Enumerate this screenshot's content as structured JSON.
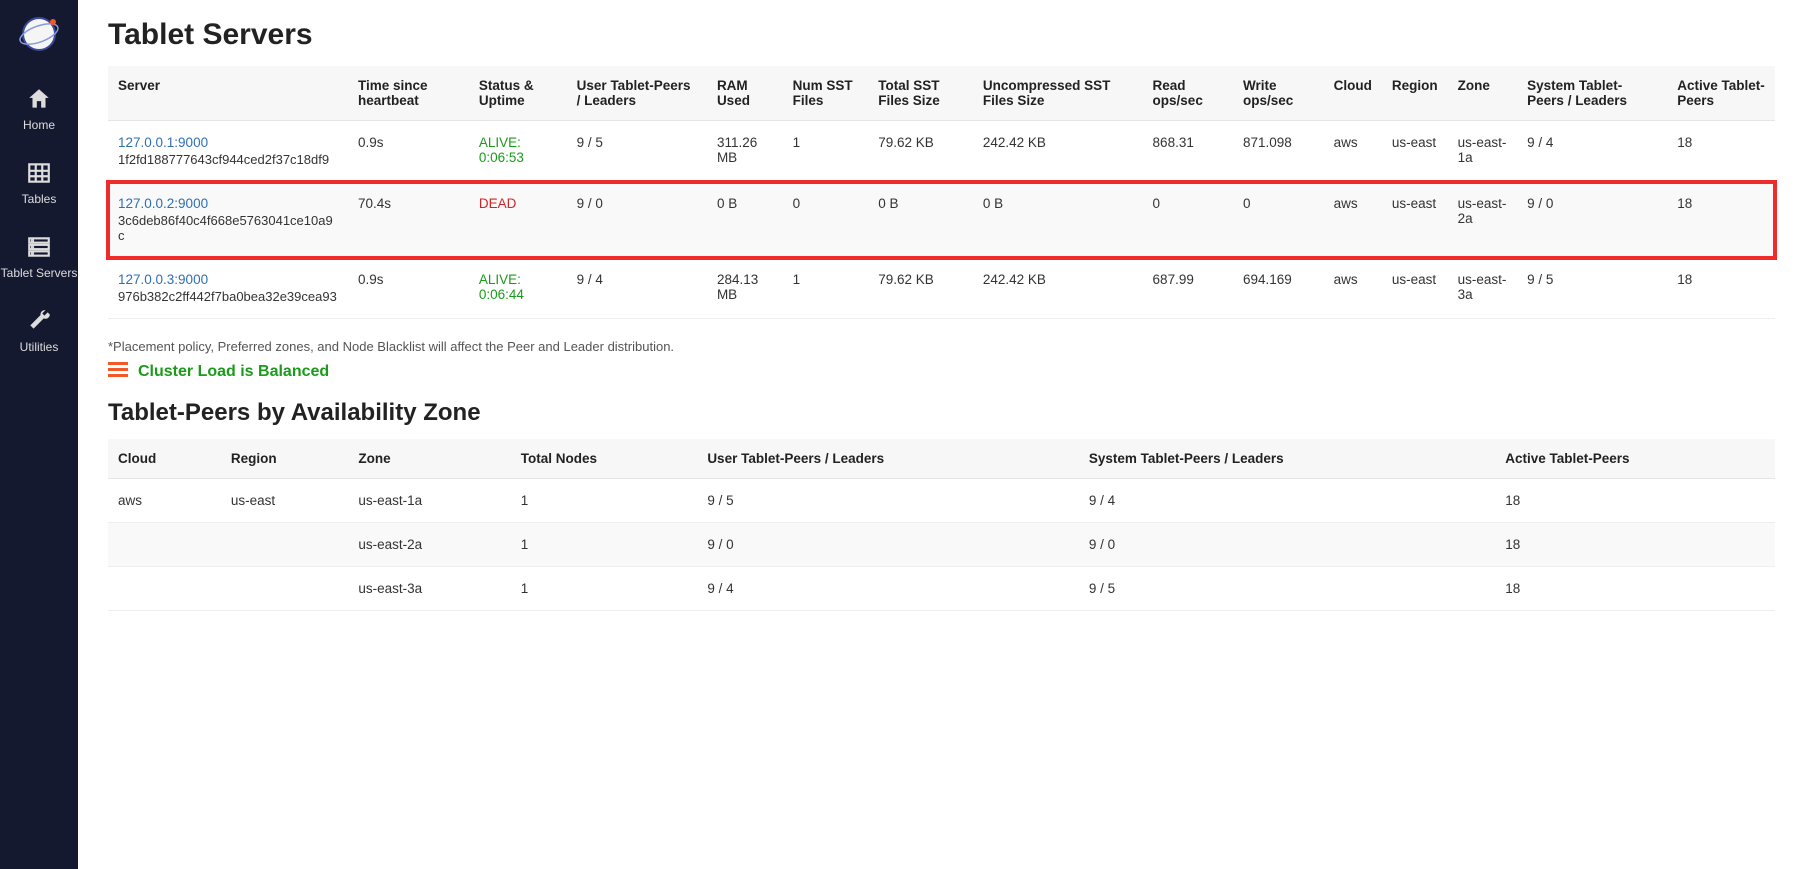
{
  "sidebar": {
    "items": [
      {
        "label": "Home"
      },
      {
        "label": "Tables"
      },
      {
        "label": "Tablet Servers"
      },
      {
        "label": "Utilities"
      }
    ]
  },
  "page": {
    "title": "Tablet Servers",
    "footnote": "*Placement policy, Preferred zones, and Node Blacklist will affect the Peer and Leader distribution.",
    "balanced_text": "Cluster Load is Balanced",
    "az_title": "Tablet-Peers by Availability Zone"
  },
  "servers_table": {
    "headers": {
      "server": "Server",
      "time": "Time since heartbeat",
      "status": "Status & Uptime",
      "user_peers": "User Tablet-Peers / Leaders",
      "ram": "RAM Used",
      "num_sst": "Num SST Files",
      "total_sst": "Total SST Files Size",
      "uncomp": "Uncompressed SST Files Size",
      "read_ops": "Read ops/sec",
      "write_ops": "Write ops/sec",
      "cloud": "Cloud",
      "region": "Region",
      "zone": "Zone",
      "sys_peers": "System Tablet-Peers / Leaders",
      "active": "Active Tablet-Peers"
    },
    "rows": [
      {
        "server": "127.0.0.1:9000",
        "uuid": "1f2fd188777643cf944ced2f37c18df9",
        "time": "0.9s",
        "status": "ALIVE: 0:06:53",
        "status_class": "alive",
        "user_peers": "9 / 5",
        "ram": "311.26 MB",
        "num_sst": "1",
        "total_sst": "79.62 KB",
        "uncomp": "242.42 KB",
        "read_ops": "868.31",
        "write_ops": "871.098",
        "cloud": "aws",
        "region": "us-east",
        "zone": "us-east-1a",
        "sys_peers": "9 / 4",
        "active": "18",
        "highlight": false,
        "striped": false
      },
      {
        "server": "127.0.0.2:9000",
        "uuid": "3c6deb86f40c4f668e5763041ce10a9c",
        "time": "70.4s",
        "status": "DEAD",
        "status_class": "dead",
        "user_peers": "9 / 0",
        "ram": "0 B",
        "num_sst": "0",
        "total_sst": "0 B",
        "uncomp": "0 B",
        "read_ops": "0",
        "write_ops": "0",
        "cloud": "aws",
        "region": "us-east",
        "zone": "us-east-2a",
        "sys_peers": "9 / 0",
        "active": "18",
        "highlight": true,
        "striped": true
      },
      {
        "server": "127.0.0.3:9000",
        "uuid": "976b382c2ff442f7ba0bea32e39cea93",
        "time": "0.9s",
        "status": "ALIVE: 0:06:44",
        "status_class": "alive",
        "user_peers": "9 / 4",
        "ram": "284.13 MB",
        "num_sst": "1",
        "total_sst": "79.62 KB",
        "uncomp": "242.42 KB",
        "read_ops": "687.99",
        "write_ops": "694.169",
        "cloud": "aws",
        "region": "us-east",
        "zone": "us-east-3a",
        "sys_peers": "9 / 5",
        "active": "18",
        "highlight": false,
        "striped": false
      }
    ]
  },
  "az_table": {
    "headers": {
      "cloud": "Cloud",
      "region": "Region",
      "zone": "Zone",
      "total_nodes": "Total Nodes",
      "user_peers": "User Tablet-Peers / Leaders",
      "sys_peers": "System Tablet-Peers / Leaders",
      "active": "Active Tablet-Peers"
    },
    "rows": [
      {
        "cloud": "aws",
        "region": "us-east",
        "zone": "us-east-1a",
        "total_nodes": "1",
        "user_peers": "9 / 5",
        "sys_peers": "9 / 4",
        "active": "18"
      },
      {
        "cloud": "",
        "region": "",
        "zone": "us-east-2a",
        "total_nodes": "1",
        "user_peers": "9 / 0",
        "sys_peers": "9 / 0",
        "active": "18"
      },
      {
        "cloud": "",
        "region": "",
        "zone": "us-east-3a",
        "total_nodes": "1",
        "user_peers": "9 / 4",
        "sys_peers": "9 / 5",
        "active": "18"
      }
    ]
  },
  "colors": {
    "sidebar_bg": "#15192f",
    "link": "#2f6fb4",
    "alive": "#1a9c1a",
    "dead": "#d42525",
    "highlight_border": "#ef2b2b",
    "balanced_icon": "#ef5a28"
  }
}
